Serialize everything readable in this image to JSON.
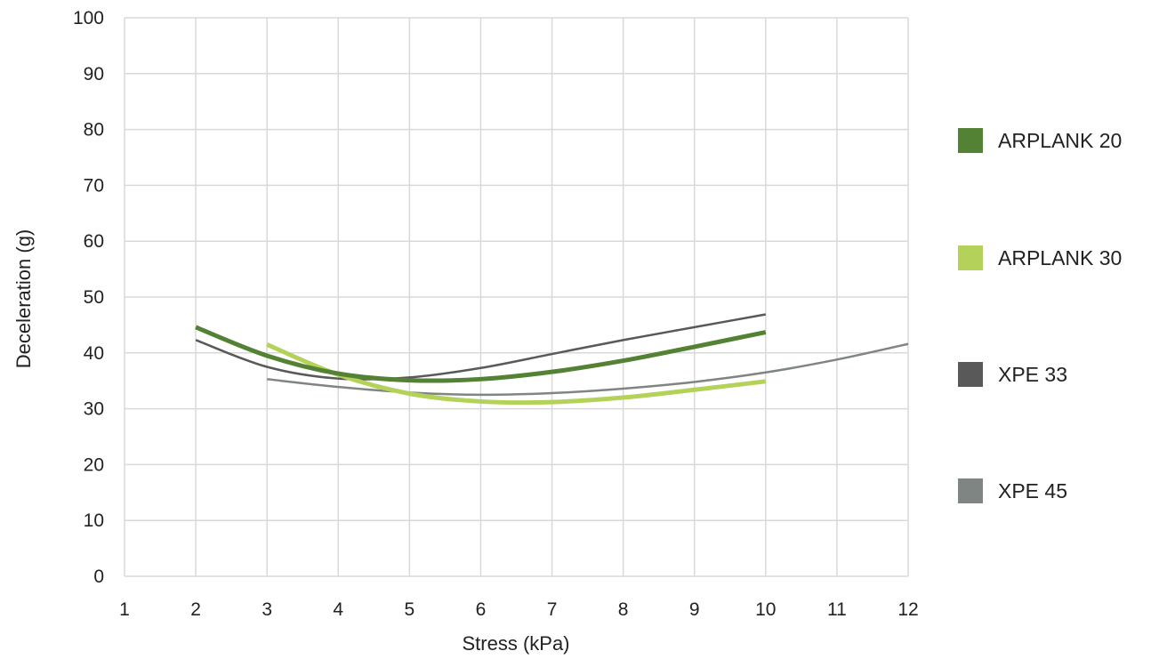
{
  "chart_data": {
    "type": "line",
    "title": "",
    "xlabel": "Stress (kPa)",
    "ylabel": "Deceleration (g)",
    "xlim": [
      1,
      12
    ],
    "ylim": [
      0,
      100
    ],
    "x_ticks": [
      "1",
      "2",
      "3",
      "4",
      "5",
      "6",
      "7",
      "8",
      "9",
      "10",
      "11",
      "12"
    ],
    "y_ticks": [
      "0",
      "10",
      "20",
      "30",
      "40",
      "50",
      "60",
      "70",
      "80",
      "90",
      "100"
    ],
    "grid": true,
    "legend_position": "right",
    "series": [
      {
        "name": "ARPLANK 20",
        "color": "#548235",
        "x": [
          2,
          3,
          4,
          5,
          6,
          7,
          8,
          9,
          10
        ],
        "y": [
          44.6,
          39.5,
          36.3,
          35.1,
          35.3,
          36.6,
          38.6,
          41.1,
          43.7
        ]
      },
      {
        "name": "ARPLANK 30",
        "color": "#b4d25a",
        "x": [
          3,
          4,
          5,
          6,
          7,
          8,
          9,
          10
        ],
        "y": [
          41.5,
          36.1,
          32.7,
          31.3,
          31.2,
          32.0,
          33.4,
          34.9
        ]
      },
      {
        "name": "XPE 33",
        "color": "#595959",
        "x": [
          2,
          3,
          4,
          5,
          6,
          7,
          8,
          9,
          10
        ],
        "y": [
          42.3,
          37.5,
          35.4,
          35.6,
          37.3,
          39.8,
          42.3,
          44.6,
          46.9
        ]
      },
      {
        "name": "XPE 45",
        "color": "#7f8582",
        "x": [
          3,
          4,
          5,
          6,
          7,
          8,
          9,
          10,
          11,
          12
        ],
        "y": [
          35.3,
          33.9,
          32.9,
          32.5,
          32.8,
          33.6,
          34.8,
          36.5,
          38.8,
          41.6
        ]
      }
    ]
  }
}
